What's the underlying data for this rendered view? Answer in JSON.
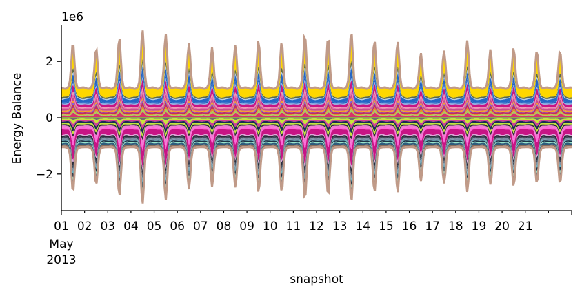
{
  "chart_data": {
    "type": "area",
    "title": "",
    "xlabel": "snapshot",
    "ylabel": "Energy Balance",
    "y_scale_label": "1e6",
    "y_ticks": [
      -2,
      0,
      2
    ],
    "y_tick_labels": [
      "−2",
      "0",
      "2"
    ],
    "ylim": [
      -3.3,
      3.3
    ],
    "y_unit_multiplier": 1000000,
    "x_start": "2013-05-01",
    "x_end": "2013-05-22",
    "x_tick_labels": [
      "01",
      "02",
      "03",
      "04",
      "05",
      "06",
      "07",
      "08",
      "09",
      "10",
      "11",
      "12",
      "13",
      "14",
      "15",
      "16",
      "17",
      "18",
      "19",
      "20",
      "21"
    ],
    "x_first_label_sub": [
      "May",
      "2013"
    ],
    "grid": false,
    "legend": "none",
    "day_positive_peaks_1e6": [
      2.58,
      2.38,
      2.75,
      3.02,
      2.88,
      2.55,
      2.42,
      2.5,
      2.65,
      2.6,
      2.85,
      2.75,
      2.95,
      2.65,
      2.62,
      2.22,
      2.3,
      2.65,
      2.35,
      2.4,
      2.3
    ],
    "day_negative_peaks_1e6": [
      -2.6,
      -2.35,
      -2.75,
      -3.02,
      -2.88,
      -2.5,
      -2.42,
      -2.45,
      -2.62,
      -2.6,
      -2.85,
      -2.72,
      -2.95,
      -2.6,
      -2.62,
      -2.22,
      -2.3,
      -2.6,
      -2.35,
      -2.4,
      -2.3
    ],
    "positive_series": [
      {
        "color": "#fed700",
        "share": 0.3
      },
      {
        "color": "#5f6b44",
        "share": 0.05
      },
      {
        "color": "#b9cde0",
        "share": 0.03
      },
      {
        "color": "#2466c6",
        "share": 0.1
      },
      {
        "color": "#235ebc",
        "share": 0.04
      },
      {
        "color": "#8fb5e8",
        "share": 0.03
      },
      {
        "color": "#c71585",
        "share": 0.09
      },
      {
        "color": "#f29dae",
        "share": 0.03
      },
      {
        "color": "#e36ea9",
        "share": 0.04
      },
      {
        "color": "#c84e8a",
        "share": 0.05
      },
      {
        "color": "#f5a023",
        "share": 0.03
      },
      {
        "color": "#7b5cd6",
        "share": 0.03
      },
      {
        "color": "#c02c64",
        "share": 0.05
      },
      {
        "color": "#e08c2d",
        "share": 0.03
      },
      {
        "color": "#a7ce5a",
        "share": 0.03
      },
      {
        "color": "#d6336c",
        "share": 0.07
      }
    ],
    "negative_series": [
      {
        "color": "#707070",
        "share": 0.03
      },
      {
        "color": "#c8e639",
        "share": 0.04
      },
      {
        "color": "#cf3f92",
        "share": 0.04
      },
      {
        "color": "#1c2a55",
        "share": 0.05
      },
      {
        "color": "#c4e63a",
        "share": 0.04
      },
      {
        "color": "#2f2f2f",
        "share": 0.04
      },
      {
        "color": "#ef7bd2",
        "share": 0.06
      },
      {
        "color": "#ff66d9",
        "share": 0.05
      },
      {
        "color": "#c71585",
        "share": 0.16
      },
      {
        "color": "#e0a8da",
        "share": 0.03
      },
      {
        "color": "#2a2a3a",
        "share": 0.05
      },
      {
        "color": "#3c4a5a",
        "share": 0.04
      },
      {
        "color": "#7a8fa3",
        "share": 0.04
      },
      {
        "color": "#65b7c7",
        "share": 0.03
      },
      {
        "color": "#1d3346",
        "share": 0.04
      },
      {
        "color": "#98e6c8",
        "share": 0.03
      },
      {
        "color": "#2d5c7c",
        "share": 0.05
      },
      {
        "color": "#8a6d5c",
        "share": 0.04
      },
      {
        "color": "#c09a88",
        "share": 0.04
      }
    ],
    "outline_color": "#c09a88"
  }
}
